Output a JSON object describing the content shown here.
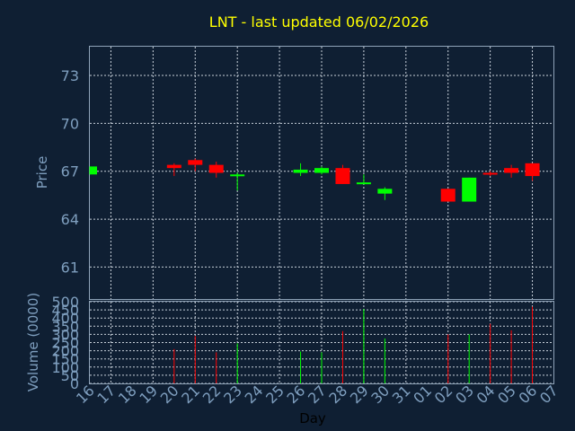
{
  "chart_data": {
    "type": "candlestick",
    "title": "LNT - last updated 06/02/2026",
    "xlabel": "Day",
    "colors": {
      "background": "#0f1f33",
      "title": "#ffff00",
      "axis_text": "#7f9fbf",
      "up": "#00ff00",
      "down": "#ff0000",
      "grid": "#c8d0da",
      "frame": "#8fa3b8"
    },
    "x_ticks": [
      "16",
      "17",
      "18",
      "19",
      "20",
      "21",
      "22",
      "23",
      "24",
      "25",
      "26",
      "27",
      "28",
      "29",
      "30",
      "31",
      "01",
      "02",
      "03",
      "04",
      "05",
      "06",
      "07"
    ],
    "price_panel": {
      "ylabel": "Price",
      "ylim": [
        59,
        74.8
      ],
      "yticks": [
        61,
        64,
        67,
        70,
        73
      ],
      "grid": true
    },
    "volume_panel": {
      "ylabel": "Volume (0000)",
      "ylim": [
        0,
        500
      ],
      "yticks": [
        0,
        50,
        100,
        150,
        200,
        250,
        300,
        350,
        400,
        450,
        500
      ],
      "grid": true
    },
    "candles": [
      {
        "day": "16",
        "open": 66.8,
        "high": 67.3,
        "low": 66.8,
        "close": 67.3,
        "volume": 0
      },
      {
        "day": "20",
        "open": 67.4,
        "high": 67.5,
        "low": 66.7,
        "close": 67.2,
        "volume": 210
      },
      {
        "day": "21",
        "open": 67.7,
        "high": 67.8,
        "low": 67.0,
        "close": 67.4,
        "volume": 290
      },
      {
        "day": "22",
        "open": 67.4,
        "high": 67.6,
        "low": 66.6,
        "close": 66.9,
        "volume": 190
      },
      {
        "day": "23",
        "open": 66.7,
        "high": 66.9,
        "low": 65.8,
        "close": 66.8,
        "volume": 245
      },
      {
        "day": "26",
        "open": 66.9,
        "high": 67.5,
        "low": 66.7,
        "close": 67.1,
        "volume": 195
      },
      {
        "day": "27",
        "open": 66.9,
        "high": 67.3,
        "low": 66.8,
        "close": 67.2,
        "volume": 190
      },
      {
        "day": "28",
        "open": 67.2,
        "high": 67.4,
        "low": 66.2,
        "close": 66.2,
        "volume": 320
      },
      {
        "day": "29",
        "open": 66.2,
        "high": 66.8,
        "low": 66.2,
        "close": 66.3,
        "volume": 455
      },
      {
        "day": "30",
        "open": 65.6,
        "high": 66.0,
        "low": 65.2,
        "close": 65.9,
        "volume": 275
      },
      {
        "day": "02",
        "open": 65.9,
        "high": 65.9,
        "low": 65.1,
        "close": 65.1,
        "volume": 300
      },
      {
        "day": "03",
        "open": 65.1,
        "high": 66.6,
        "low": 65.1,
        "close": 66.6,
        "volume": 300
      },
      {
        "day": "04",
        "open": 66.9,
        "high": 67.0,
        "low": 66.7,
        "close": 66.8,
        "volume": 365
      },
      {
        "day": "05",
        "open": 67.2,
        "high": 67.4,
        "low": 66.6,
        "close": 66.9,
        "volume": 325
      },
      {
        "day": "06",
        "open": 67.5,
        "high": 67.5,
        "low": 66.4,
        "close": 66.7,
        "volume": 470
      }
    ]
  }
}
